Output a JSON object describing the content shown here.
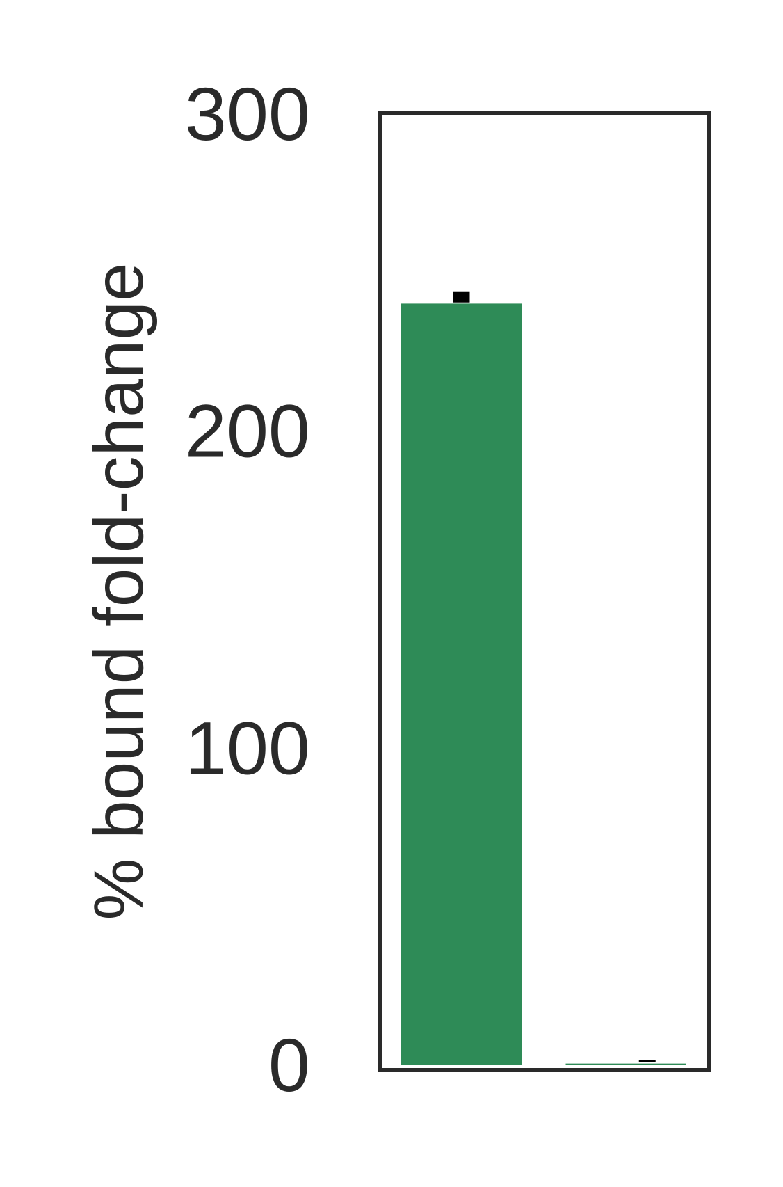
{
  "chart_data": {
    "type": "bar",
    "title": "",
    "xlabel": "",
    "ylabel": "% bound fold-change",
    "categories": [
      "",
      ""
    ],
    "values": [
      240,
      0.3
    ],
    "errors": [
      3,
      0.3
    ],
    "bar_colors": [
      "#2e8b57",
      "#2e8b57"
    ],
    "error_color": "#000000",
    "frame_color": "#2a2a2a",
    "ylim": [
      0,
      300
    ],
    "yticks": [
      0,
      100,
      200,
      300
    ],
    "ytick_labels": [
      "0",
      "100",
      "200",
      "300"
    ],
    "grid": false,
    "legend": "none"
  }
}
